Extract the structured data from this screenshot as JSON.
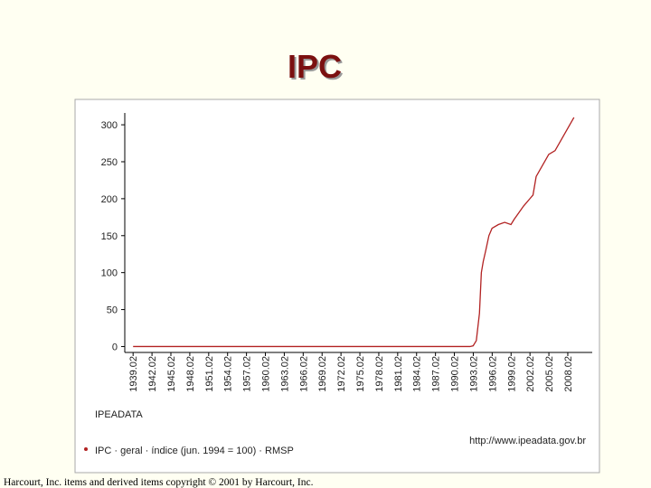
{
  "title": "IPC",
  "footer": "Harcourt, Inc. items and derived items copyright © 2001 by Harcourt, Inc.",
  "chart_data": {
    "type": "line",
    "source": "IPEADATA",
    "url": "http://www.ipeadata.gov.br",
    "x": [
      1939.02,
      1950,
      1960,
      1970,
      1980,
      1990,
      1992.5,
      1993.0,
      1993.5,
      1994.0,
      1994.3,
      1994.6,
      1995.0,
      1995.5,
      1996.0,
      1997.0,
      1998.0,
      1999.0,
      1999.5,
      2000.0,
      2001.0,
      2002.0,
      2002.5,
      2003.0,
      2004.0,
      2005.0,
      2006.0,
      2007.0,
      2008.0,
      2009.0
    ],
    "series": [
      {
        "name": "IPC · geral · índice (jun. 1994 = 100) · RMSP",
        "color": "#b22222",
        "values": [
          0,
          0,
          0,
          0,
          0,
          0,
          0,
          1,
          8,
          45,
          100,
          115,
          130,
          150,
          160,
          165,
          168,
          165,
          172,
          178,
          190,
          200,
          205,
          230,
          245,
          260,
          265,
          280,
          295,
          310
        ]
      }
    ],
    "xlim": [
      1937.7,
      2011.9
    ],
    "xticks": [
      1939.02,
      1942.02,
      1945.02,
      1948.02,
      1951.02,
      1954.02,
      1957.02,
      1960.02,
      1963.02,
      1966.02,
      1969.02,
      1972.02,
      1975.02,
      1978.02,
      1981.02,
      1984.02,
      1987.02,
      1990.02,
      1993.02,
      1996.02,
      1999.02,
      2002.02,
      2005.02,
      2008.02
    ],
    "ylim": [
      -8,
      316
    ],
    "yticks": [
      0,
      50,
      100,
      150,
      200,
      250,
      300
    ]
  }
}
